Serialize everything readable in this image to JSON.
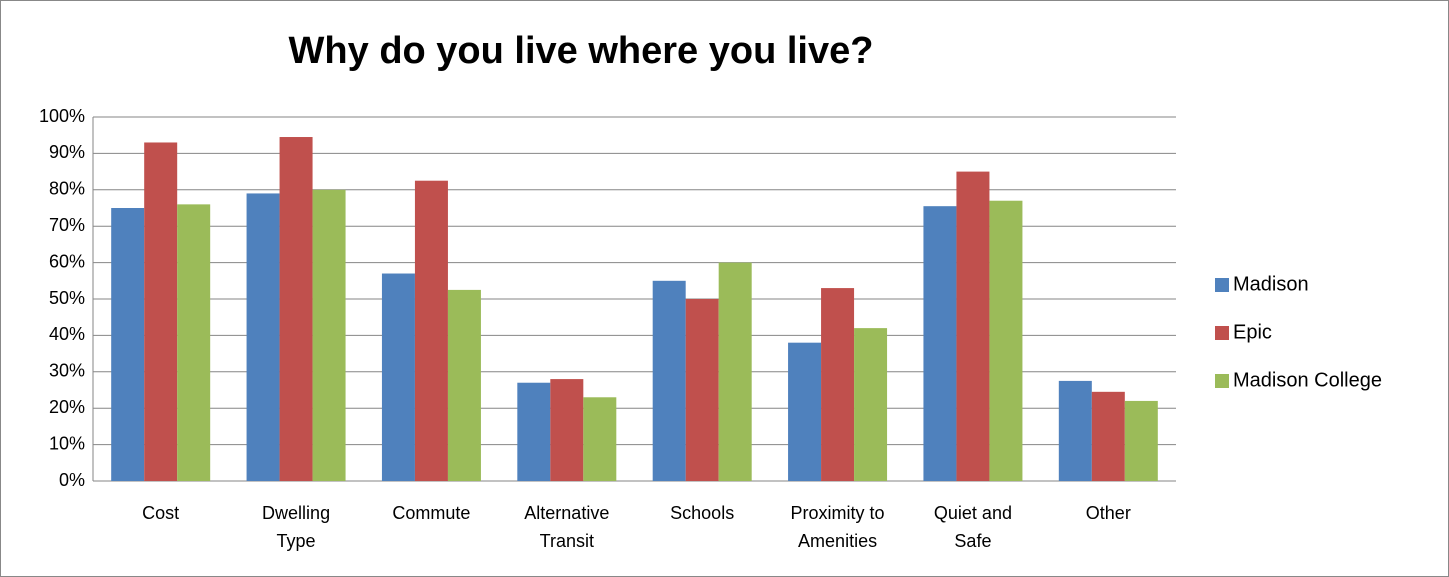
{
  "chart_data": {
    "type": "bar",
    "title": "Why do you live where you live?",
    "categories": [
      "Cost",
      "Dwelling Type",
      "Commute",
      "Alternative Transit",
      "Schools",
      "Proximity to Amenities",
      "Quiet and Safe",
      "Other"
    ],
    "series": [
      {
        "name": "Madison",
        "color": "#4f81bd",
        "values": [
          75,
          79,
          57,
          27,
          55,
          38,
          75.5,
          27.5
        ]
      },
      {
        "name": "Epic",
        "color": "#c0504d",
        "values": [
          93,
          94.5,
          82.5,
          28,
          50,
          53,
          85,
          24.5
        ]
      },
      {
        "name": "Madison College",
        "color": "#9bbb59",
        "values": [
          76,
          80,
          52.5,
          23,
          60,
          42,
          77,
          22
        ]
      }
    ],
    "ylim": [
      0,
      100
    ],
    "yticks": [
      {
        "value": 0,
        "label": "0%"
      },
      {
        "value": 10,
        "label": "10%"
      },
      {
        "value": 20,
        "label": "20%"
      },
      {
        "value": 30,
        "label": "30%"
      },
      {
        "value": 40,
        "label": "40%"
      },
      {
        "value": 50,
        "label": "50%"
      },
      {
        "value": 60,
        "label": "60%"
      },
      {
        "value": 70,
        "label": "70%"
      },
      {
        "value": 80,
        "label": "80%"
      },
      {
        "value": 90,
        "label": "90%"
      },
      {
        "value": 100,
        "label": "100%"
      }
    ],
    "grid": true,
    "legend": "right"
  }
}
